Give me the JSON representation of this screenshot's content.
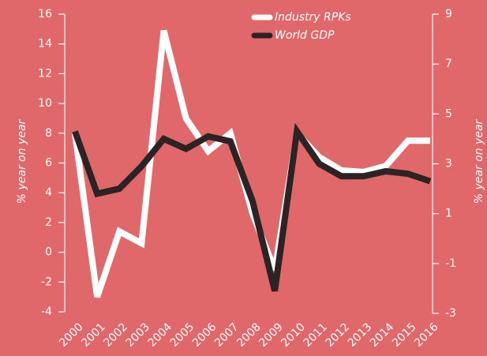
{
  "chart_data": {
    "type": "line",
    "categories": [
      "2000",
      "2001",
      "2002",
      "2003",
      "2004",
      "2005",
      "2006",
      "2007",
      "2008",
      "2009",
      "2010",
      "2011",
      "2012",
      "2013",
      "2014",
      "2015",
      "2016"
    ],
    "series": [
      {
        "name": "Industry RPKs",
        "color": "#ffffff",
        "values": [
          8.0,
          -3.0,
          1.4,
          0.6,
          14.9,
          9.0,
          6.8,
          8.0,
          2.6,
          -1.2,
          8.0,
          6.4,
          5.5,
          5.4,
          5.8,
          7.5,
          7.5
        ]
      },
      {
        "name": "World GDP",
        "color": "#2b2324",
        "axis": "y2",
        "values": [
          4.3,
          1.8,
          2.0,
          2.9,
          4.0,
          3.6,
          4.1,
          3.9,
          1.5,
          -2.1,
          4.3,
          3.0,
          2.5,
          2.5,
          2.7,
          2.6,
          2.3
        ]
      }
    ],
    "ylabel": "% year on year",
    "y2label": "% year on year",
    "ylim": [
      -4,
      16
    ],
    "yticks": [
      -4,
      -2,
      0,
      2,
      4,
      6,
      8,
      10,
      12,
      14,
      16
    ],
    "y2lim": [
      -3,
      9
    ],
    "y2ticks": [
      -3,
      -1,
      1,
      3,
      5,
      7,
      9
    ]
  }
}
